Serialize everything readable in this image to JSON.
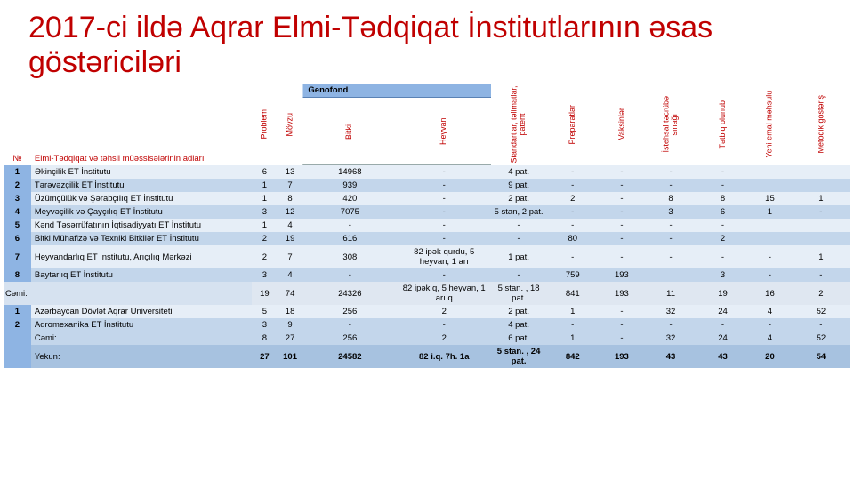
{
  "title": "2017-ci ildə Aqrar Elmi-Tədqiqat İnstitutlarının əsas göstəriciləri",
  "headers": {
    "num": "№",
    "name": "Elmi-Tədqiqat və təhsil müəssisələrinin adları",
    "problem": "Problem",
    "movzu": "Mövzu",
    "genofond": "Genofond",
    "bitki": "Bitki",
    "heyvan": "Heyvan",
    "standartlar": "Standartlar, təlimatlar, patent",
    "preparatlar": "Preparatlar",
    "vaksinlar": "Vaksinlər",
    "istehsal": "İstehsal təcrübə sınağı",
    "tetbiq": "Tətbiq olunub",
    "yeni": "Yeni emal məhsulu",
    "metodik": "Metodik göstəriş"
  },
  "block1": [
    {
      "n": "1",
      "name": "Əkinçilik ET İnstitutu",
      "p": "6",
      "m": "13",
      "b": "14968",
      "h": "-",
      "s": "4 pat.",
      "pr": "-",
      "v": "-",
      "i": "-",
      "t": "-",
      "y": "",
      "me": ""
    },
    {
      "n": "2",
      "name": "Tərəvəzçilik ET İnstitutu",
      "p": "1",
      "m": "7",
      "b": "939",
      "h": "-",
      "s": "9 pat.",
      "pr": "-",
      "v": "-",
      "i": "-",
      "t": "-",
      "y": "",
      "me": ""
    },
    {
      "n": "3",
      "name": "Üzümçülük və Şərabçılıq ET İnstitutu",
      "p": "1",
      "m": "8",
      "b": "420",
      "h": "-",
      "s": "2 pat.",
      "pr": "2",
      "v": "-",
      "i": "8",
      "t": "8",
      "y": "15",
      "me": "1"
    },
    {
      "n": "4",
      "name": "Meyvəçilik və Çayçılıq ET İnstitutu",
      "p": "3",
      "m": "12",
      "b": "7075",
      "h": "-",
      "s": "5 stan, 2 pat.",
      "pr": "-",
      "v": "-",
      "i": "3",
      "t": "6",
      "y": "1",
      "me": "-"
    },
    {
      "n": "5",
      "name": "Kənd Təsərrüfatının İqtisadiyyatı ET İnstitutu",
      "p": "1",
      "m": "4",
      "b": "-",
      "h": "-",
      "s": "-",
      "pr": "-",
      "v": "-",
      "i": "-",
      "t": "-",
      "y": "",
      "me": ""
    },
    {
      "n": "6",
      "name": "Bitki Mühafizə və Texniki Bitkilər ET İnstitutu",
      "p": "2",
      "m": "19",
      "b": "616",
      "h": "-",
      "s": "-",
      "pr": "80",
      "v": "-",
      "i": "-",
      "t": "2",
      "y": "",
      "me": ""
    },
    {
      "n": "7",
      "name": "Heyvandarlıq ET İnstitutu, Arıçılıq Mərkəzi",
      "p": "2",
      "m": "7",
      "b": "308",
      "h": "82 ipək qurdu, 5 heyvan, 1 arı",
      "s": "1 pat.",
      "pr": "-",
      "v": "-",
      "i": "-",
      "t": "-",
      "y": "-",
      "me": "1"
    },
    {
      "n": "8",
      "name": "Baytarlıq ET İnstitutu",
      "p": "3",
      "m": "4",
      "b": "-",
      "h": "-",
      "s": "-",
      "pr": "759",
      "v": "193",
      "i": "",
      "t": "3",
      "y": "-",
      "me": "-"
    }
  ],
  "cemi1": {
    "label": "Cəmi:",
    "p": "19",
    "m": "74",
    "b": "24326",
    "h": "82 ipək q, 5 heyvan, 1 arı q",
    "s": "5 stan. , 18 pat.",
    "pr": "841",
    "v": "193",
    "i": "11",
    "t": "19",
    "y": "16",
    "me": "2"
  },
  "block2": [
    {
      "n": "1",
      "name": "Azərbaycan Dövlət Aqrar Universiteti",
      "p": "5",
      "m": "18",
      "b": "256",
      "h": "2",
      "s": "2 pat.",
      "pr": "1",
      "v": "-",
      "i": "32",
      "t": "24",
      "y": "4",
      "me": "52"
    },
    {
      "n": "2",
      "name": "Aqromexanika ET İnstitutu",
      "p": "3",
      "m": "9",
      "b": "-",
      "h": "-",
      "s": "4 pat.",
      "pr": "-",
      "v": "-",
      "i": "-",
      "t": "-",
      "y": "-",
      "me": "-"
    }
  ],
  "cemi2": {
    "label": "Cəmi:",
    "p": "8",
    "m": "27",
    "b": "256",
    "h": "2",
    "s": "6 pat.",
    "pr": "1",
    "v": "-",
    "i": "32",
    "t": "24",
    "y": "4",
    "me": "52"
  },
  "yekun": {
    "label": "Yekun:",
    "p": "27",
    "m": "101",
    "b": "24582",
    "h": "82 i.q. 7h. 1a",
    "s": "5 stan. , 24 pat.",
    "pr": "842",
    "v": "193",
    "i": "43",
    "t": "43",
    "y": "20",
    "me": "54"
  },
  "colors": {
    "accent": "#c00000",
    "header_band": "#8eb4e3",
    "band_light": "#e6eef7",
    "band_dark": "#c3d6eb"
  }
}
